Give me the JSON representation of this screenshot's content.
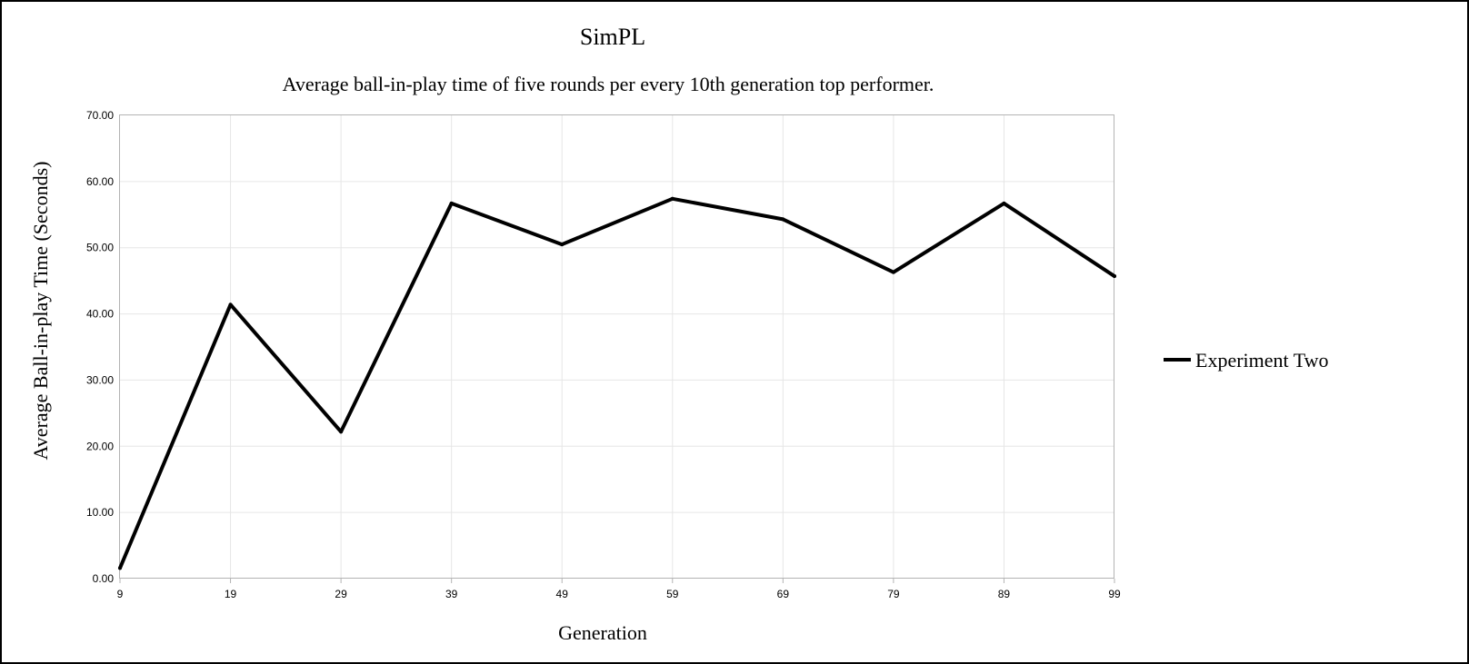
{
  "chart_data": {
    "type": "line",
    "title": "SimPL",
    "subtitle": "Average ball-in-play time of five rounds per every 10th generation top performer.",
    "xlabel": "Generation",
    "ylabel": "Average Ball-in-play Time (Seconds)",
    "categories": [
      "9",
      "19",
      "29",
      "39",
      "49",
      "59",
      "69",
      "79",
      "89",
      "99"
    ],
    "y_tick_labels": [
      "0.00",
      "10.00",
      "20.00",
      "30.00",
      "40.00",
      "50.00",
      "60.00",
      "70.00"
    ],
    "ylim": [
      0,
      70
    ],
    "grid": true,
    "legend_position": "right",
    "series": [
      {
        "name": "Experiment Two",
        "color": "#000000",
        "values": [
          1.6,
          41.4,
          22.2,
          56.7,
          50.5,
          57.4,
          54.3,
          46.3,
          56.7,
          45.7
        ]
      }
    ]
  }
}
